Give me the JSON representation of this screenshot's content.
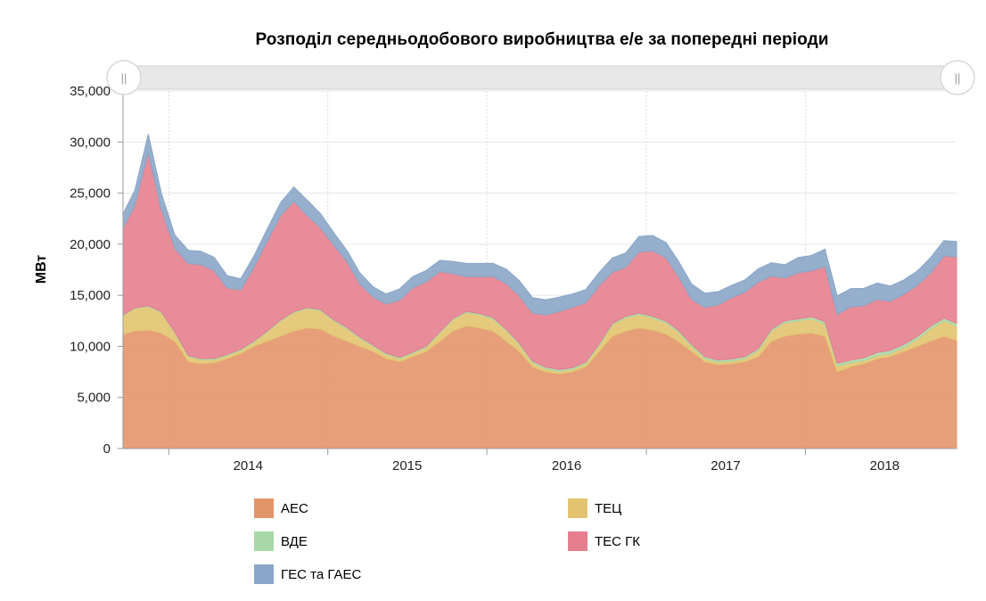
{
  "chart_data": {
    "type": "area",
    "title": "Розподіл середньодобового виробництва е/е за попередні періоди",
    "ylabel": "МВт",
    "xlabel": "",
    "ylim": [
      0,
      35000
    ],
    "y_ticks": [
      "0",
      "5,000",
      "10,000",
      "15,000",
      "20,000",
      "25,000",
      "30,000",
      "35,000"
    ],
    "x_ticks": [
      "2014",
      "2015",
      "2016",
      "2017",
      "2018"
    ],
    "grid": true,
    "stacked": true,
    "legend_position": "bottom",
    "x": [
      "2013-09",
      "2013-10",
      "2013-11",
      "2013-12",
      "2014-01",
      "2014-02",
      "2014-03",
      "2014-04",
      "2014-05",
      "2014-06",
      "2014-07",
      "2014-08",
      "2014-09",
      "2014-10",
      "2014-11",
      "2014-12",
      "2015-01",
      "2015-02",
      "2015-03",
      "2015-04",
      "2015-05",
      "2015-06",
      "2015-07",
      "2015-08",
      "2015-09",
      "2015-10",
      "2015-11",
      "2015-12",
      "2016-01",
      "2016-02",
      "2016-03",
      "2016-04",
      "2016-05",
      "2016-06",
      "2016-07",
      "2016-08",
      "2016-09",
      "2016-10",
      "2016-11",
      "2016-12",
      "2017-01",
      "2017-02",
      "2017-03",
      "2017-04",
      "2017-05",
      "2017-06",
      "2017-07",
      "2017-08",
      "2017-09",
      "2017-10",
      "2017-11",
      "2017-12",
      "2018-01",
      "2018-02",
      "2018-03",
      "2018-04",
      "2018-05",
      "2018-06",
      "2018-07",
      "2018-08",
      "2018-09",
      "2018-10",
      "2018-11",
      "2018-12"
    ],
    "series": [
      {
        "name": "АЕС",
        "color": "#e3956a",
        "values": [
          11200,
          11500,
          11600,
          11300,
          10500,
          8500,
          8300,
          8400,
          8800,
          9300,
          10000,
          10500,
          11000,
          11500,
          11800,
          11700,
          11000,
          10500,
          10000,
          9500,
          8800,
          8500,
          9000,
          9500,
          10500,
          11500,
          12000,
          11800,
          11500,
          10500,
          9500,
          8000,
          7500,
          7300,
          7500,
          8000,
          9500,
          11000,
          11500,
          11800,
          11600,
          11200,
          10500,
          9500,
          8500,
          8200,
          8300,
          8500,
          9000,
          10500,
          11000,
          11200,
          11300,
          11000,
          7500,
          8000,
          8300,
          8800,
          9000,
          9500,
          10000,
          10500,
          11000,
          10600
        ]
      },
      {
        "name": "ТЕЦ",
        "color": "#e2c470",
        "values": [
          1800,
          2200,
          2300,
          2000,
          800,
          500,
          400,
          300,
          300,
          300,
          400,
          900,
          1500,
          1800,
          1900,
          1800,
          1500,
          1200,
          800,
          500,
          400,
          300,
          300,
          400,
          800,
          1100,
          1300,
          1300,
          1200,
          1000,
          700,
          400,
          300,
          250,
          250,
          300,
          600,
          1100,
          1300,
          1300,
          1200,
          1100,
          900,
          500,
          300,
          250,
          250,
          300,
          600,
          1000,
          1300,
          1300,
          1400,
          1200,
          600,
          400,
          300,
          300,
          300,
          400,
          700,
          1200,
          1500,
          1400
        ]
      },
      {
        "name": "ВДЕ",
        "color": "#a8d8a8",
        "values": [
          60,
          70,
          80,
          80,
          90,
          100,
          110,
          120,
          120,
          120,
          110,
          100,
          100,
          100,
          100,
          100,
          110,
          120,
          120,
          130,
          130,
          130,
          130,
          130,
          120,
          120,
          120,
          120,
          130,
          140,
          150,
          160,
          170,
          170,
          170,
          160,
          150,
          150,
          150,
          150,
          160,
          170,
          190,
          200,
          210,
          210,
          210,
          200,
          190,
          190,
          190,
          190,
          200,
          220,
          240,
          260,
          280,
          300,
          310,
          300,
          280,
          270,
          260,
          260
        ]
      },
      {
        "name": "ТЕС ГК",
        "color": "#e57f8e",
        "values": [
          8500,
          10000,
          15000,
          10000,
          8200,
          9000,
          9200,
          8600,
          6500,
          5800,
          7200,
          8800,
          10200,
          10800,
          9000,
          8000,
          7300,
          6400,
          5200,
          4700,
          4800,
          5600,
          6300,
          6300,
          5900,
          4400,
          3400,
          3600,
          4000,
          4500,
          4600,
          4700,
          5100,
          5700,
          5900,
          5800,
          5700,
          5000,
          4800,
          6000,
          6400,
          6200,
          5300,
          4400,
          4800,
          5400,
          6000,
          6300,
          6500,
          5200,
          4200,
          4500,
          4500,
          5400,
          4800,
          5200,
          5100,
          5200,
          4800,
          4900,
          5000,
          5200,
          6100,
          6500
        ]
      },
      {
        "name": "ГЕС та ГАЕС",
        "color": "#8aa6c8",
        "values": [
          1400,
          1500,
          1800,
          1600,
          1300,
          1300,
          1300,
          1300,
          1200,
          1100,
          1100,
          1200,
          1300,
          1400,
          1500,
          1400,
          1200,
          1100,
          1100,
          1000,
          1000,
          1100,
          1100,
          1100,
          1100,
          1200,
          1300,
          1300,
          1300,
          1400,
          1500,
          1500,
          1500,
          1400,
          1300,
          1300,
          1300,
          1400,
          1400,
          1500,
          1500,
          1500,
          1500,
          1500,
          1400,
          1300,
          1200,
          1200,
          1300,
          1300,
          1300,
          1500,
          1500,
          1700,
          1800,
          1800,
          1700,
          1600,
          1500,
          1400,
          1400,
          1500,
          1500,
          1500
        ]
      }
    ]
  },
  "scrollbar": {
    "left_grip": "||",
    "right_grip": "||"
  }
}
